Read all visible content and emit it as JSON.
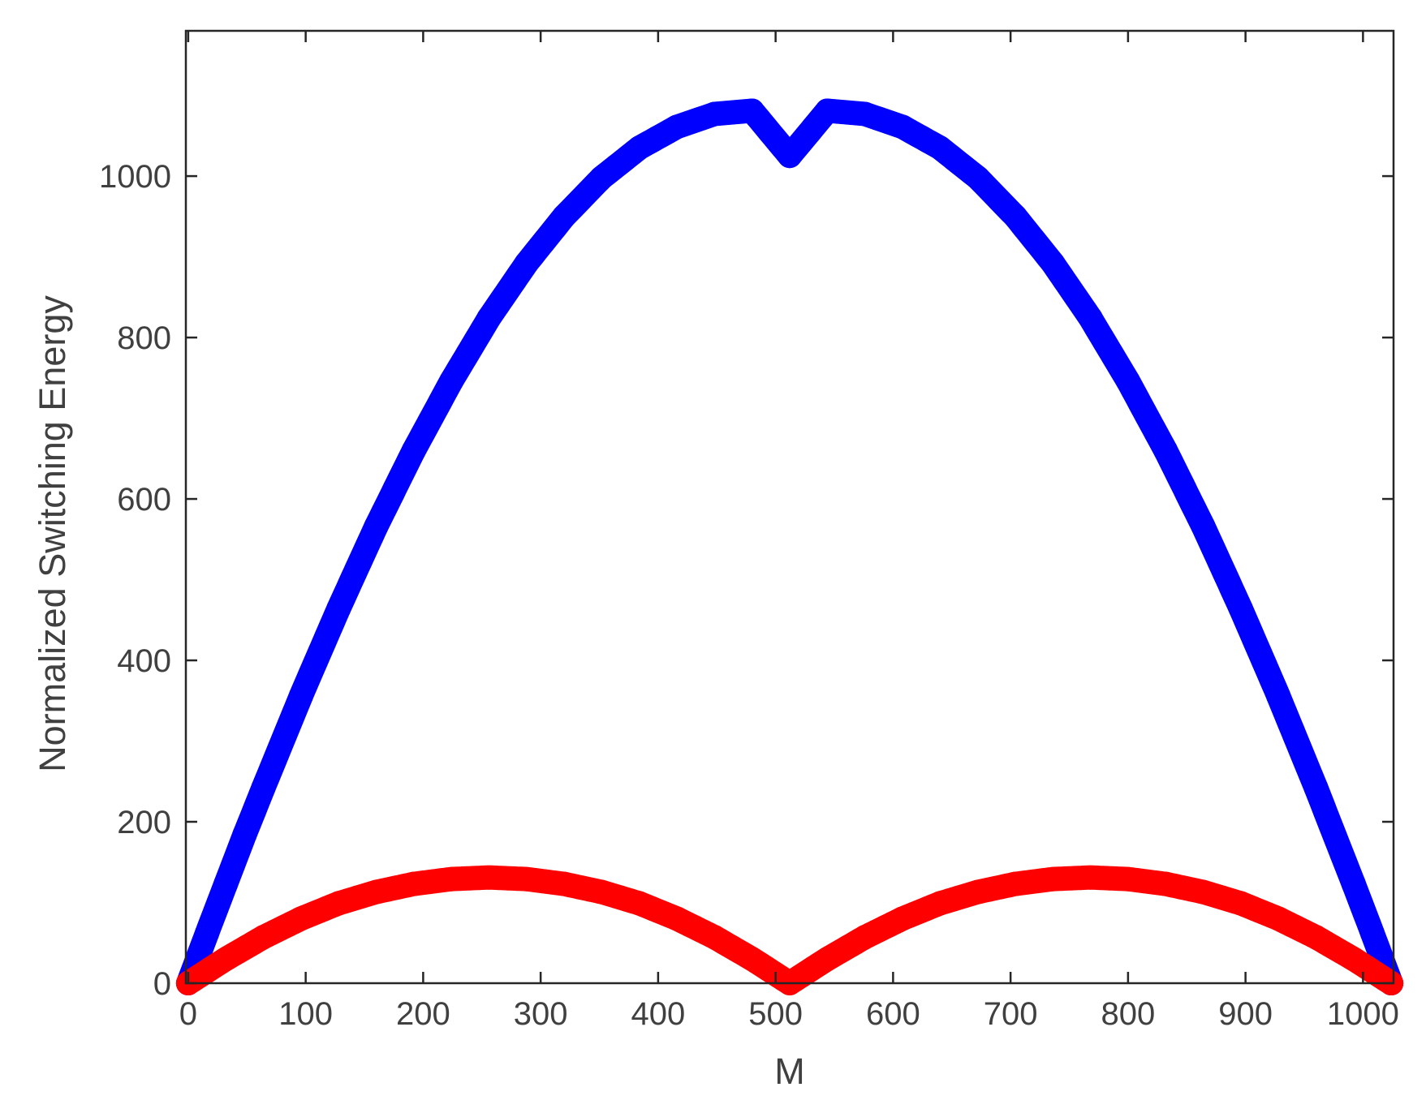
{
  "chart_data": {
    "type": "scatter",
    "title": "",
    "xlabel": "M",
    "ylabel": "Normalized Switching Energy",
    "xlim": [
      -2,
      1026
    ],
    "ylim": [
      0,
      1180
    ],
    "xticks": [
      0,
      100,
      200,
      300,
      400,
      500,
      600,
      700,
      800,
      900,
      1000
    ],
    "yticks": [
      0,
      200,
      400,
      600,
      800,
      1000
    ],
    "xtick_labels": [
      "0",
      "100",
      "200",
      "300",
      "400",
      "500",
      "600",
      "700",
      "800",
      "900",
      "1000"
    ],
    "ytick_labels": [
      "0",
      "200",
      "400",
      "600",
      "800",
      "1000"
    ],
    "grid": false,
    "box": true,
    "colors": {
      "axis": "#262626",
      "text": "#404040",
      "series_1": "#0000ff",
      "series_2": "#ff0000"
    },
    "series": [
      {
        "color": "#0000ff",
        "marker": "circle",
        "x": [
          0,
          16,
          32,
          48,
          64,
          96,
          128,
          160,
          192,
          224,
          256,
          288,
          320,
          352,
          384,
          416,
          448,
          480,
          512,
          544,
          576,
          608,
          640,
          672,
          704,
          736,
          768,
          800,
          832,
          864,
          896,
          928,
          960,
          992,
          1008,
          1024
        ],
        "y": [
          0,
          62,
          123,
          184,
          242,
          356,
          464,
          566,
          660,
          746,
          824,
          892,
          950,
          998,
          1035,
          1061,
          1077,
          1081,
          1025,
          1081,
          1077,
          1061,
          1035,
          998,
          950,
          892,
          824,
          746,
          660,
          566,
          464,
          356,
          242,
          123,
          62,
          0
        ]
      },
      {
        "color": "#ff0000",
        "marker": "circle",
        "x": [
          0,
          32,
          64,
          96,
          128,
          160,
          192,
          224,
          256,
          288,
          320,
          352,
          384,
          416,
          448,
          480,
          512,
          544,
          576,
          608,
          640,
          672,
          704,
          736,
          768,
          800,
          832,
          864,
          896,
          928,
          960,
          992,
          1024
        ],
        "y": [
          0,
          30,
          57,
          80,
          99,
          113,
          123,
          129,
          131,
          129,
          123,
          113,
          99,
          80,
          57,
          30,
          0,
          30,
          57,
          80,
          99,
          113,
          123,
          129,
          131,
          129,
          123,
          113,
          99,
          80,
          57,
          30,
          0
        ]
      }
    ]
  }
}
